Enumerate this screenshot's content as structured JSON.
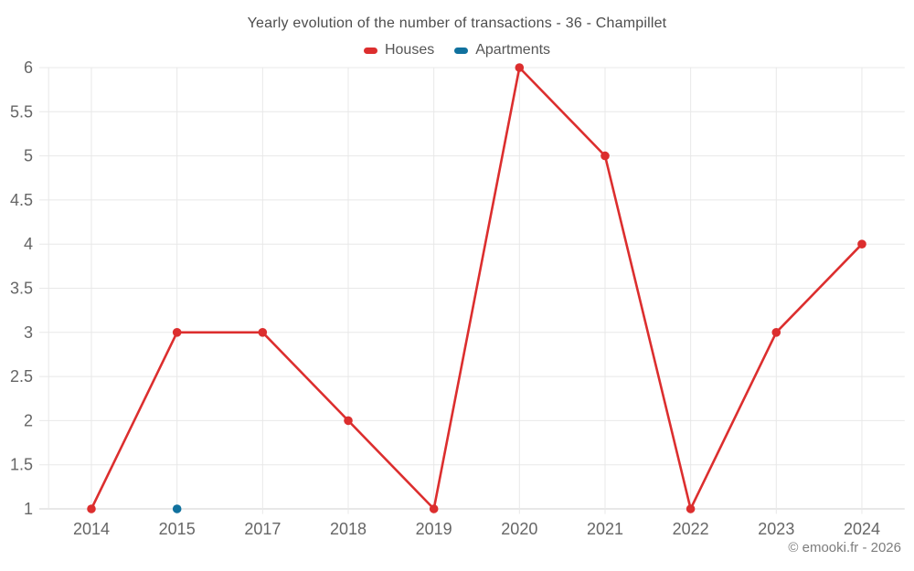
{
  "footer": "© emooki.fr - 2026",
  "colors": {
    "houses": "#dc2e2e",
    "apartments": "#10719e",
    "grid": "#e8e8e8",
    "axis_line": "#d2d2d2",
    "tick_text": "#666666",
    "title_text": "#4d4d4d",
    "footer_text": "#7d7d7d"
  },
  "chart_data": {
    "type": "line",
    "title": "Yearly evolution of the number of transactions - 36 - Champillet",
    "categories": [
      "2014",
      "2015",
      "2017",
      "2018",
      "2019",
      "2020",
      "2021",
      "2022",
      "2023",
      "2024"
    ],
    "series": [
      {
        "name": "Houses",
        "color": "#dc2e2e",
        "values": [
          1,
          3,
          3,
          2,
          1,
          6,
          5,
          1,
          3,
          4
        ]
      },
      {
        "name": "Apartments",
        "color": "#10719e",
        "values": [
          null,
          1,
          null,
          null,
          null,
          null,
          null,
          null,
          null,
          null
        ]
      }
    ],
    "xlabel": "",
    "ylabel": "",
    "ylim": [
      1,
      6
    ],
    "yticks": [
      1,
      1.5,
      2,
      2.5,
      3,
      3.5,
      4,
      4.5,
      5,
      5.5,
      6
    ],
    "grid": true,
    "legend_position": "top",
    "marker_radius": 4.8,
    "line_width": 2.6
  }
}
